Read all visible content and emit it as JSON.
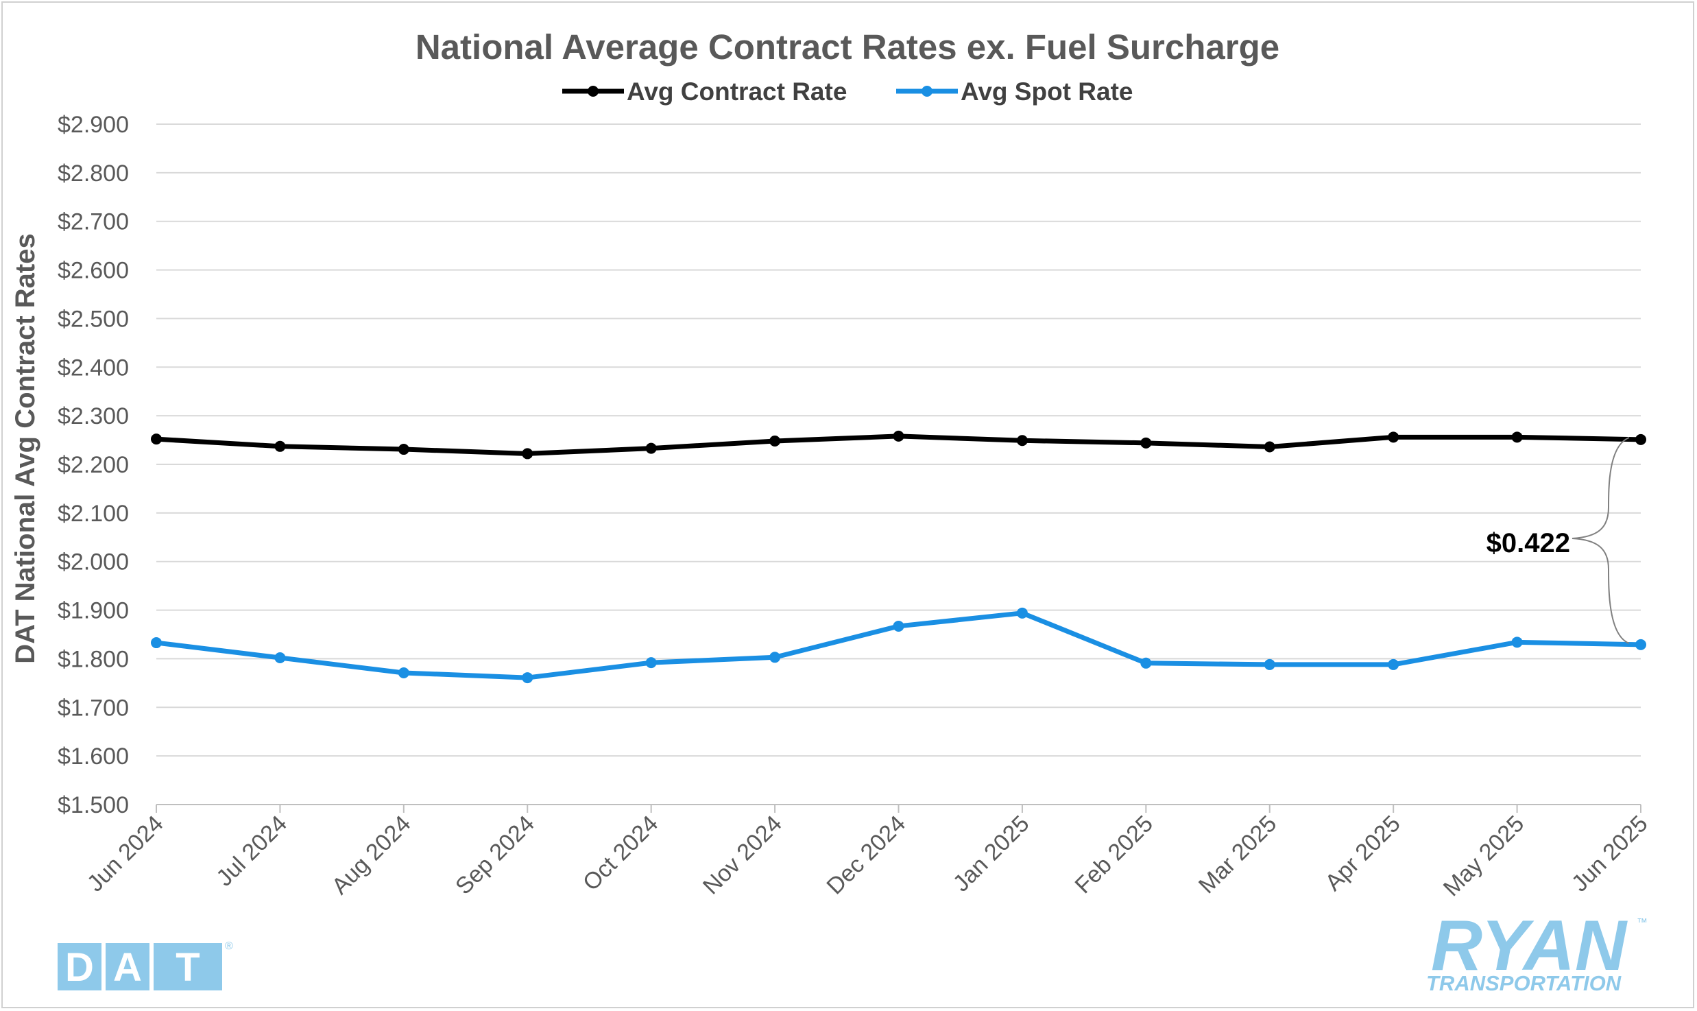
{
  "chart_data": {
    "type": "line",
    "title": "National Average Contract Rates ex. Fuel Surcharge",
    "ylabel": "DAT National Avg Contract Rates",
    "xlabel": "",
    "categories": [
      "Jun 2024",
      "Jul 2024",
      "Aug 2024",
      "Sep 2024",
      "Oct 2024",
      "Nov 2024",
      "Dec 2024",
      "Jan 2025",
      "Feb 2025",
      "Mar 2025",
      "Apr 2025",
      "May 2025",
      "Jun 2025"
    ],
    "ylim": [
      1.5,
      2.9
    ],
    "yticks": [
      1.5,
      1.6,
      1.7,
      1.8,
      1.9,
      2.0,
      2.1,
      2.2,
      2.3,
      2.4,
      2.5,
      2.6,
      2.7,
      2.8,
      2.9
    ],
    "ytick_labels": [
      "$1.500",
      "$1.600",
      "$1.700",
      "$1.800",
      "$1.900",
      "$2.000",
      "$2.100",
      "$2.200",
      "$2.300",
      "$2.400",
      "$2.500",
      "$2.600",
      "$2.700",
      "$2.800",
      "$2.900"
    ],
    "grid": true,
    "legend_position": "top",
    "series": [
      {
        "name": "Avg Contract Rate",
        "color": "#000000",
        "values": [
          2.252,
          2.237,
          2.231,
          2.222,
          2.233,
          2.248,
          2.258,
          2.249,
          2.244,
          2.236,
          2.256,
          2.256,
          2.251
        ]
      },
      {
        "name": "Avg Spot Rate",
        "color": "#1a8fe3",
        "values": [
          1.833,
          1.802,
          1.771,
          1.761,
          1.792,
          1.803,
          1.867,
          1.894,
          1.791,
          1.788,
          1.788,
          1.834,
          1.829
        ]
      }
    ],
    "annotations": [
      {
        "text": "$0.422"
      }
    ]
  },
  "logos": {
    "left": {
      "letters": [
        "D",
        "A",
        "T"
      ],
      "mark": "®",
      "color": "#8ec9ea"
    },
    "right": {
      "name": "RYAN",
      "tagline": "TRANSPORTATION",
      "mark": "™",
      "color": "#8ec9ea"
    }
  }
}
